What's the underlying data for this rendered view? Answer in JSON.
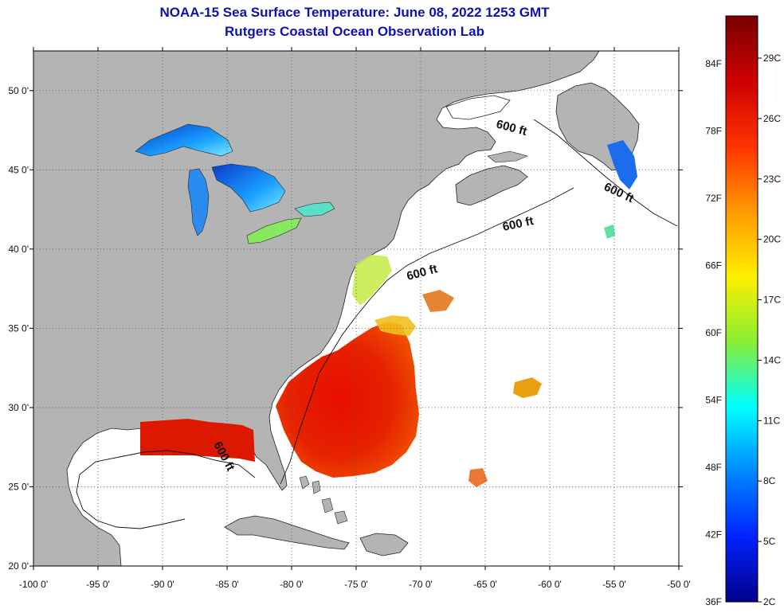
{
  "title": {
    "line1": "NOAA-15 Sea Surface Temperature:  June 08, 2022 1253 GMT",
    "line2": "Rutgers Coastal Ocean Observation Lab"
  },
  "map": {
    "lon_range": [
      -100,
      -50
    ],
    "lat_range": [
      20,
      52.5
    ],
    "lon_ticks": [
      "-100 0'",
      "-95 0'",
      "-90 0'",
      "-85 0'",
      "-80 0'",
      "-75 0'",
      "-70 0'",
      "-65 0'",
      "-60 0'",
      "-55 0'",
      "-50 0'"
    ],
    "lat_ticks": [
      "50 0'",
      "45 0'",
      "40 0'",
      "35 0'",
      "30 0'",
      "25 0'",
      "20 0'"
    ],
    "contour_labels": [
      "600 ft",
      "600 ft",
      "600 ft",
      "600 ft",
      "600 ft"
    ],
    "colors": {
      "land": "#b4b4b4",
      "ocean": "#ffffff",
      "grid": "#555555"
    }
  },
  "colorbar": {
    "fahrenheit_labels": [
      "84F",
      "78F",
      "72F",
      "66F",
      "60F",
      "54F",
      "48F",
      "42F",
      "36F"
    ],
    "celsius_labels": [
      "29C",
      "26C",
      "23C",
      "20C",
      "17C",
      "14C",
      "11C",
      "8C",
      "5C",
      "2C"
    ],
    "colors": [
      "#7a0000",
      "#cc0000",
      "#ff3300",
      "#ff9900",
      "#ffee00",
      "#88ee33",
      "#00ffff",
      "#0088ff",
      "#0022ff",
      "#00008a"
    ]
  }
}
